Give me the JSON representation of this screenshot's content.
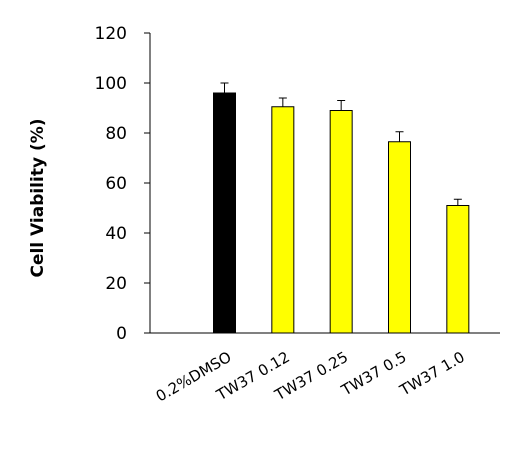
{
  "chart_data": {
    "type": "bar",
    "title": "",
    "xlabel": "",
    "ylabel": "Cell Viability (%)",
    "ylim": [
      0,
      120
    ],
    "yticks": [
      0,
      20,
      40,
      60,
      80,
      100,
      120
    ],
    "grid": false,
    "categories": [
      "0.2%DMSO",
      "TW37 0.12",
      "TW37 0.25",
      "TW37 0.5",
      "TW37 1.0"
    ],
    "values": [
      96,
      90.5,
      89,
      76.5,
      51
    ],
    "errors": [
      4,
      3.5,
      4,
      4,
      2.5
    ],
    "colors": [
      "#000000",
      "#ffff00",
      "#ffff00",
      "#ffff00",
      "#ffff00"
    ],
    "edge_color": "#000000"
  }
}
